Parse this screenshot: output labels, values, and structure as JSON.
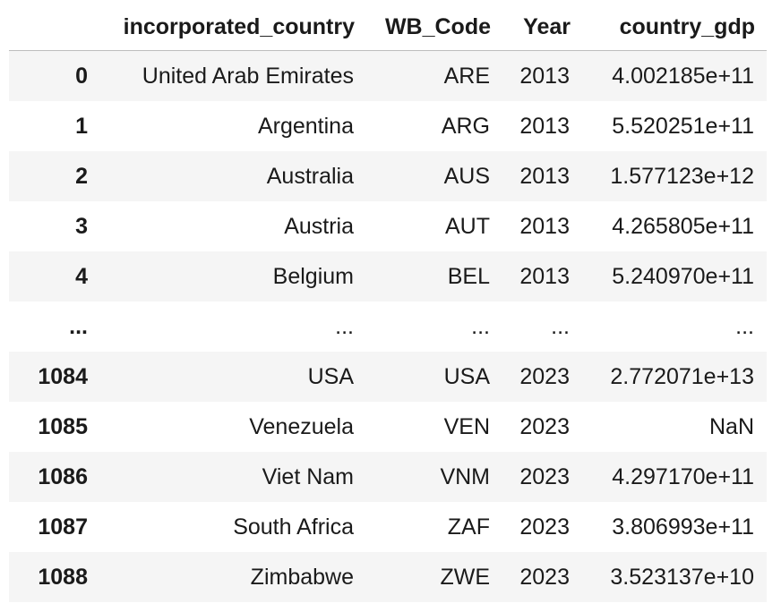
{
  "table": {
    "index_header": "",
    "columns": [
      "incorporated_country",
      "WB_Code",
      "Year",
      "country_gdp"
    ],
    "rows": [
      {
        "index": "0",
        "incorporated_country": "United Arab Emirates",
        "WB_Code": "ARE",
        "Year": "2013",
        "country_gdp": "4.002185e+11"
      },
      {
        "index": "1",
        "incorporated_country": "Argentina",
        "WB_Code": "ARG",
        "Year": "2013",
        "country_gdp": "5.520251e+11"
      },
      {
        "index": "2",
        "incorporated_country": "Australia",
        "WB_Code": "AUS",
        "Year": "2013",
        "country_gdp": "1.577123e+12"
      },
      {
        "index": "3",
        "incorporated_country": "Austria",
        "WB_Code": "AUT",
        "Year": "2013",
        "country_gdp": "4.265805e+11"
      },
      {
        "index": "4",
        "incorporated_country": "Belgium",
        "WB_Code": "BEL",
        "Year": "2013",
        "country_gdp": "5.240970e+11"
      },
      {
        "index": "...",
        "incorporated_country": "...",
        "WB_Code": "...",
        "Year": "...",
        "country_gdp": "..."
      },
      {
        "index": "1084",
        "incorporated_country": "USA",
        "WB_Code": "USA",
        "Year": "2023",
        "country_gdp": "2.772071e+13"
      },
      {
        "index": "1085",
        "incorporated_country": "Venezuela",
        "WB_Code": "VEN",
        "Year": "2023",
        "country_gdp": "NaN"
      },
      {
        "index": "1086",
        "incorporated_country": "Viet Nam",
        "WB_Code": "VNM",
        "Year": "2023",
        "country_gdp": "4.297170e+11"
      },
      {
        "index": "1087",
        "incorporated_country": "South Africa",
        "WB_Code": "ZAF",
        "Year": "2023",
        "country_gdp": "3.806993e+11"
      },
      {
        "index": "1088",
        "incorporated_country": "Zimbabwe",
        "WB_Code": "ZWE",
        "Year": "2023",
        "country_gdp": "3.523137e+10"
      }
    ]
  }
}
